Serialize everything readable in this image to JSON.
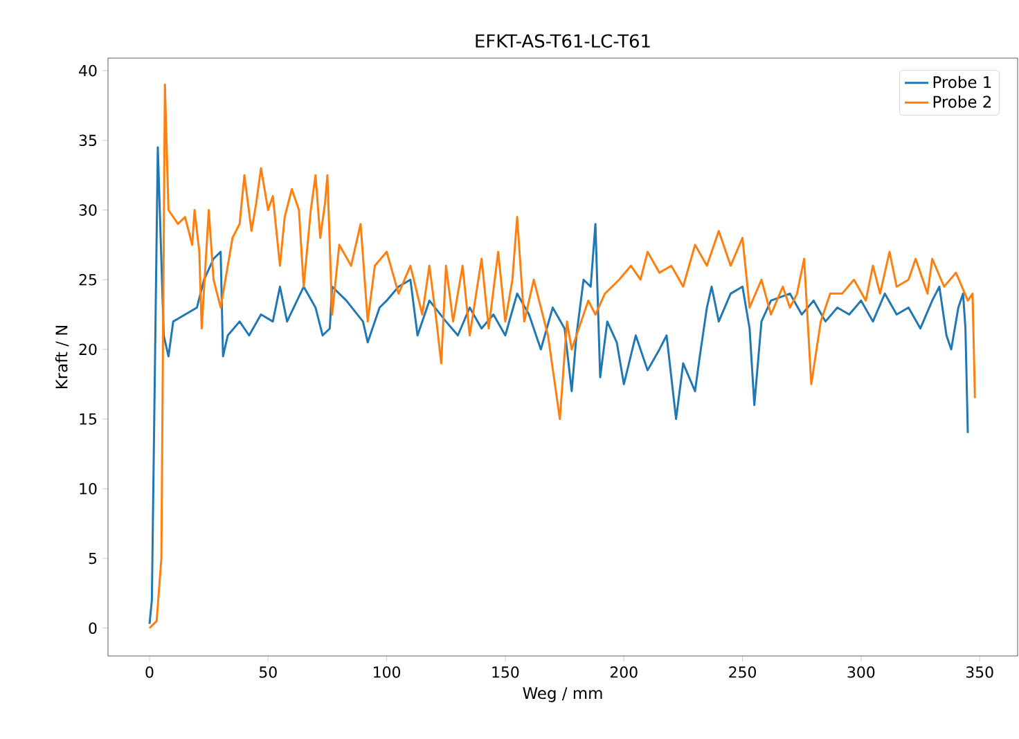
{
  "chart_data": {
    "type": "line",
    "title": "EFKT-AS-T61-LC-T61",
    "xlabel": "Weg / mm",
    "ylabel": "Kraft / N",
    "xlim": [
      -17.5,
      366
    ],
    "ylim": [
      -2,
      40.9
    ],
    "xticks": [
      0,
      50,
      100,
      150,
      200,
      250,
      300,
      350
    ],
    "yticks": [
      0,
      5,
      10,
      15,
      20,
      25,
      30,
      35,
      40
    ],
    "grid": false,
    "legend": "top right",
    "marker": "none",
    "line_style": "solid",
    "series": [
      {
        "name": "Probe 1",
        "color": "#1f77b4",
        "x": [
          0,
          1,
          2,
          3.5,
          6,
          8,
          10,
          15,
          20,
          23,
          27,
          30,
          31,
          33,
          38,
          42,
          47,
          52,
          55,
          58,
          65,
          70,
          73,
          76,
          77,
          83,
          90,
          92,
          97,
          100,
          105,
          110,
          113,
          118,
          125,
          130,
          135,
          140,
          145,
          150,
          155,
          160,
          165,
          170,
          175,
          178,
          180,
          183,
          186,
          188,
          190,
          193,
          197,
          200,
          205,
          210,
          215,
          218,
          222,
          225,
          230,
          232,
          235,
          237,
          240,
          245,
          250,
          253,
          255,
          258,
          262,
          270,
          275,
          280,
          285,
          290,
          295,
          300,
          305,
          310,
          315,
          320,
          325,
          330,
          333,
          336,
          338,
          341,
          343,
          344,
          345
        ],
        "values": [
          0.3,
          2,
          15,
          34.5,
          21,
          19.5,
          22,
          22.5,
          23,
          25,
          26.5,
          27,
          19.5,
          21,
          22,
          21,
          22.5,
          22,
          24.5,
          22,
          24.5,
          23,
          21,
          21.5,
          24.5,
          23.5,
          22,
          20.5,
          23,
          23.5,
          24.5,
          25,
          21,
          23.5,
          22,
          21,
          23,
          21.5,
          22.5,
          21,
          24,
          22.5,
          20,
          23,
          21.5,
          17,
          21,
          25,
          24.5,
          29,
          18,
          22,
          20.5,
          17.5,
          21,
          18.5,
          20,
          21,
          15,
          19,
          17,
          19.5,
          23,
          24.5,
          22,
          24,
          24.5,
          21.5,
          16,
          22,
          23.5,
          24,
          22.5,
          23.5,
          22,
          23,
          22.5,
          23.5,
          22,
          24,
          22.5,
          23,
          21.5,
          23.5,
          24.5,
          21,
          20,
          23,
          24,
          21.5,
          14
        ]
      },
      {
        "name": "Probe 2",
        "color": "#ff7f0e",
        "x": [
          0,
          3,
          5,
          6.5,
          8,
          12,
          15,
          18,
          19,
          21,
          22,
          25,
          27,
          30,
          32,
          35,
          38,
          40,
          43,
          45,
          47,
          50,
          52,
          55,
          57,
          60,
          63,
          65,
          68,
          70,
          72,
          74,
          75,
          77,
          80,
          85,
          89,
          92,
          95,
          100,
          105,
          110,
          115,
          118,
          121,
          123,
          125,
          128,
          132,
          135,
          140,
          143,
          147,
          150,
          153,
          155,
          158,
          162,
          165,
          168,
          173,
          176,
          178,
          182,
          185,
          188,
          192,
          198,
          203,
          207,
          210,
          215,
          220,
          225,
          230,
          235,
          240,
          245,
          250,
          253,
          258,
          262,
          267,
          270,
          273,
          276,
          279,
          283,
          287,
          292,
          297,
          302,
          305,
          308,
          312,
          315,
          320,
          323,
          328,
          330,
          335,
          340,
          345,
          347,
          348
        ],
        "values": [
          0,
          0.5,
          5,
          39,
          30,
          29,
          29.5,
          27.5,
          30,
          27,
          21.5,
          30,
          25,
          23,
          25,
          28,
          29,
          32.5,
          28.5,
          30.5,
          33,
          30,
          31,
          26,
          29.5,
          31.5,
          30,
          24.5,
          30,
          32.5,
          28,
          30.5,
          32.5,
          22.5,
          27.5,
          26,
          29,
          22,
          26,
          27,
          24,
          26,
          22.5,
          26,
          22,
          19,
          26,
          22,
          26,
          21,
          26.5,
          21.5,
          27,
          22,
          25,
          29.5,
          22,
          25,
          23,
          21,
          15,
          22,
          20,
          22,
          23.5,
          22.5,
          24,
          25,
          26,
          25,
          27,
          25.5,
          26,
          24.5,
          27.5,
          26,
          28.5,
          26,
          28,
          23,
          25,
          22.5,
          24.5,
          23,
          24,
          26.5,
          17.5,
          22,
          24,
          24,
          25,
          23.5,
          26,
          24,
          27,
          24.5,
          25,
          26.5,
          24,
          26.5,
          24.5,
          25.5,
          23.5,
          24,
          16.5
        ]
      }
    ]
  }
}
